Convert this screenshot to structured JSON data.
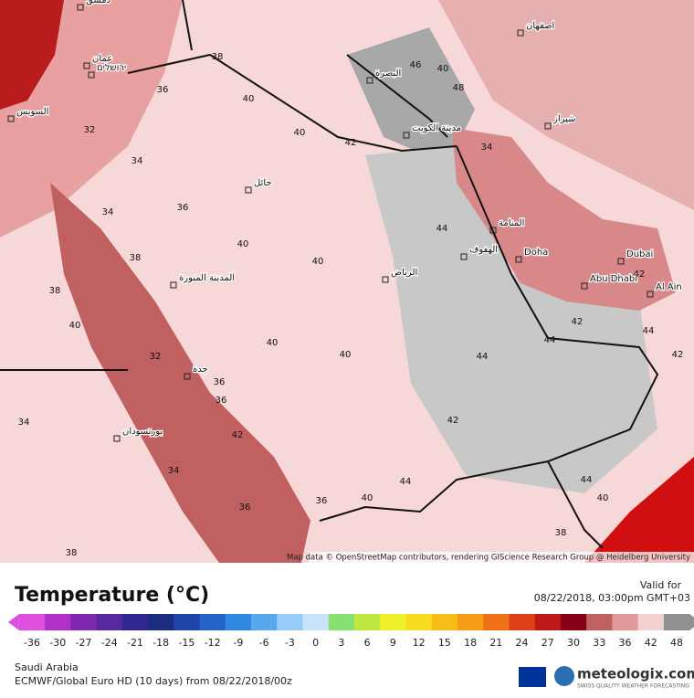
{
  "title": "Temperature (°C)",
  "valid_label": "Valid for",
  "valid_time": "08/22/2018, 03:00pm GMT+03",
  "region": "Saudi Arabia",
  "model": "ECMWF/Global Euro HD (10 days) from 08/22/2018/00z",
  "brand": "meteologix.com",
  "brand_tagline": "SWISS QUALITY WEATHER FORECASTING",
  "attribution": "Map data © OpenStreetMap contributors, rendering GIScience Research Group @ Heidelberg University",
  "cities": [
    "الرياض",
    "جدة",
    "المدينة المنورة",
    "حائل",
    "مدينة الكويت",
    "البصرة",
    "المنامة",
    "الهفوف",
    "Doha",
    "Dubai",
    "Abu Dhabi",
    "Al Ain",
    "شيراز",
    "اصفهان",
    "بورتسودان",
    "عمان",
    "ירושלים",
    "السويس",
    "دمشق"
  ],
  "contour_labels": [
    38,
    36,
    40,
    40,
    42,
    40,
    34,
    36,
    38,
    40,
    40,
    44,
    44,
    42,
    44,
    42,
    44,
    40,
    38,
    32,
    34,
    36,
    38,
    40,
    36,
    40,
    34,
    42,
    46,
    48,
    40,
    34,
    36,
    38,
    42,
    44,
    44,
    34,
    32,
    36,
    40,
    42
  ],
  "colorbar": {
    "ticks": [
      -36,
      -30,
      -27,
      -24,
      -21,
      -18,
      -15,
      -12,
      -9,
      -6,
      -3,
      0,
      3,
      6,
      9,
      12,
      15,
      18,
      21,
      24,
      27,
      30,
      33,
      36,
      42,
      48
    ],
    "colors": [
      "#e050e0",
      "#b030c8",
      "#8028b0",
      "#5828a0",
      "#302890",
      "#1c2c80",
      "#2044a8",
      "#2464c8",
      "#3088e0",
      "#58a8f0",
      "#98ccf8",
      "#c8e4f8",
      "#88e070",
      "#c0e840",
      "#f0f028",
      "#f8dc20",
      "#f8bc18",
      "#f89c18",
      "#f07018",
      "#e04018",
      "#c01818",
      "#880018",
      "#c06060",
      "#e09898",
      "#f4d0d0",
      "#909090"
    ]
  }
}
